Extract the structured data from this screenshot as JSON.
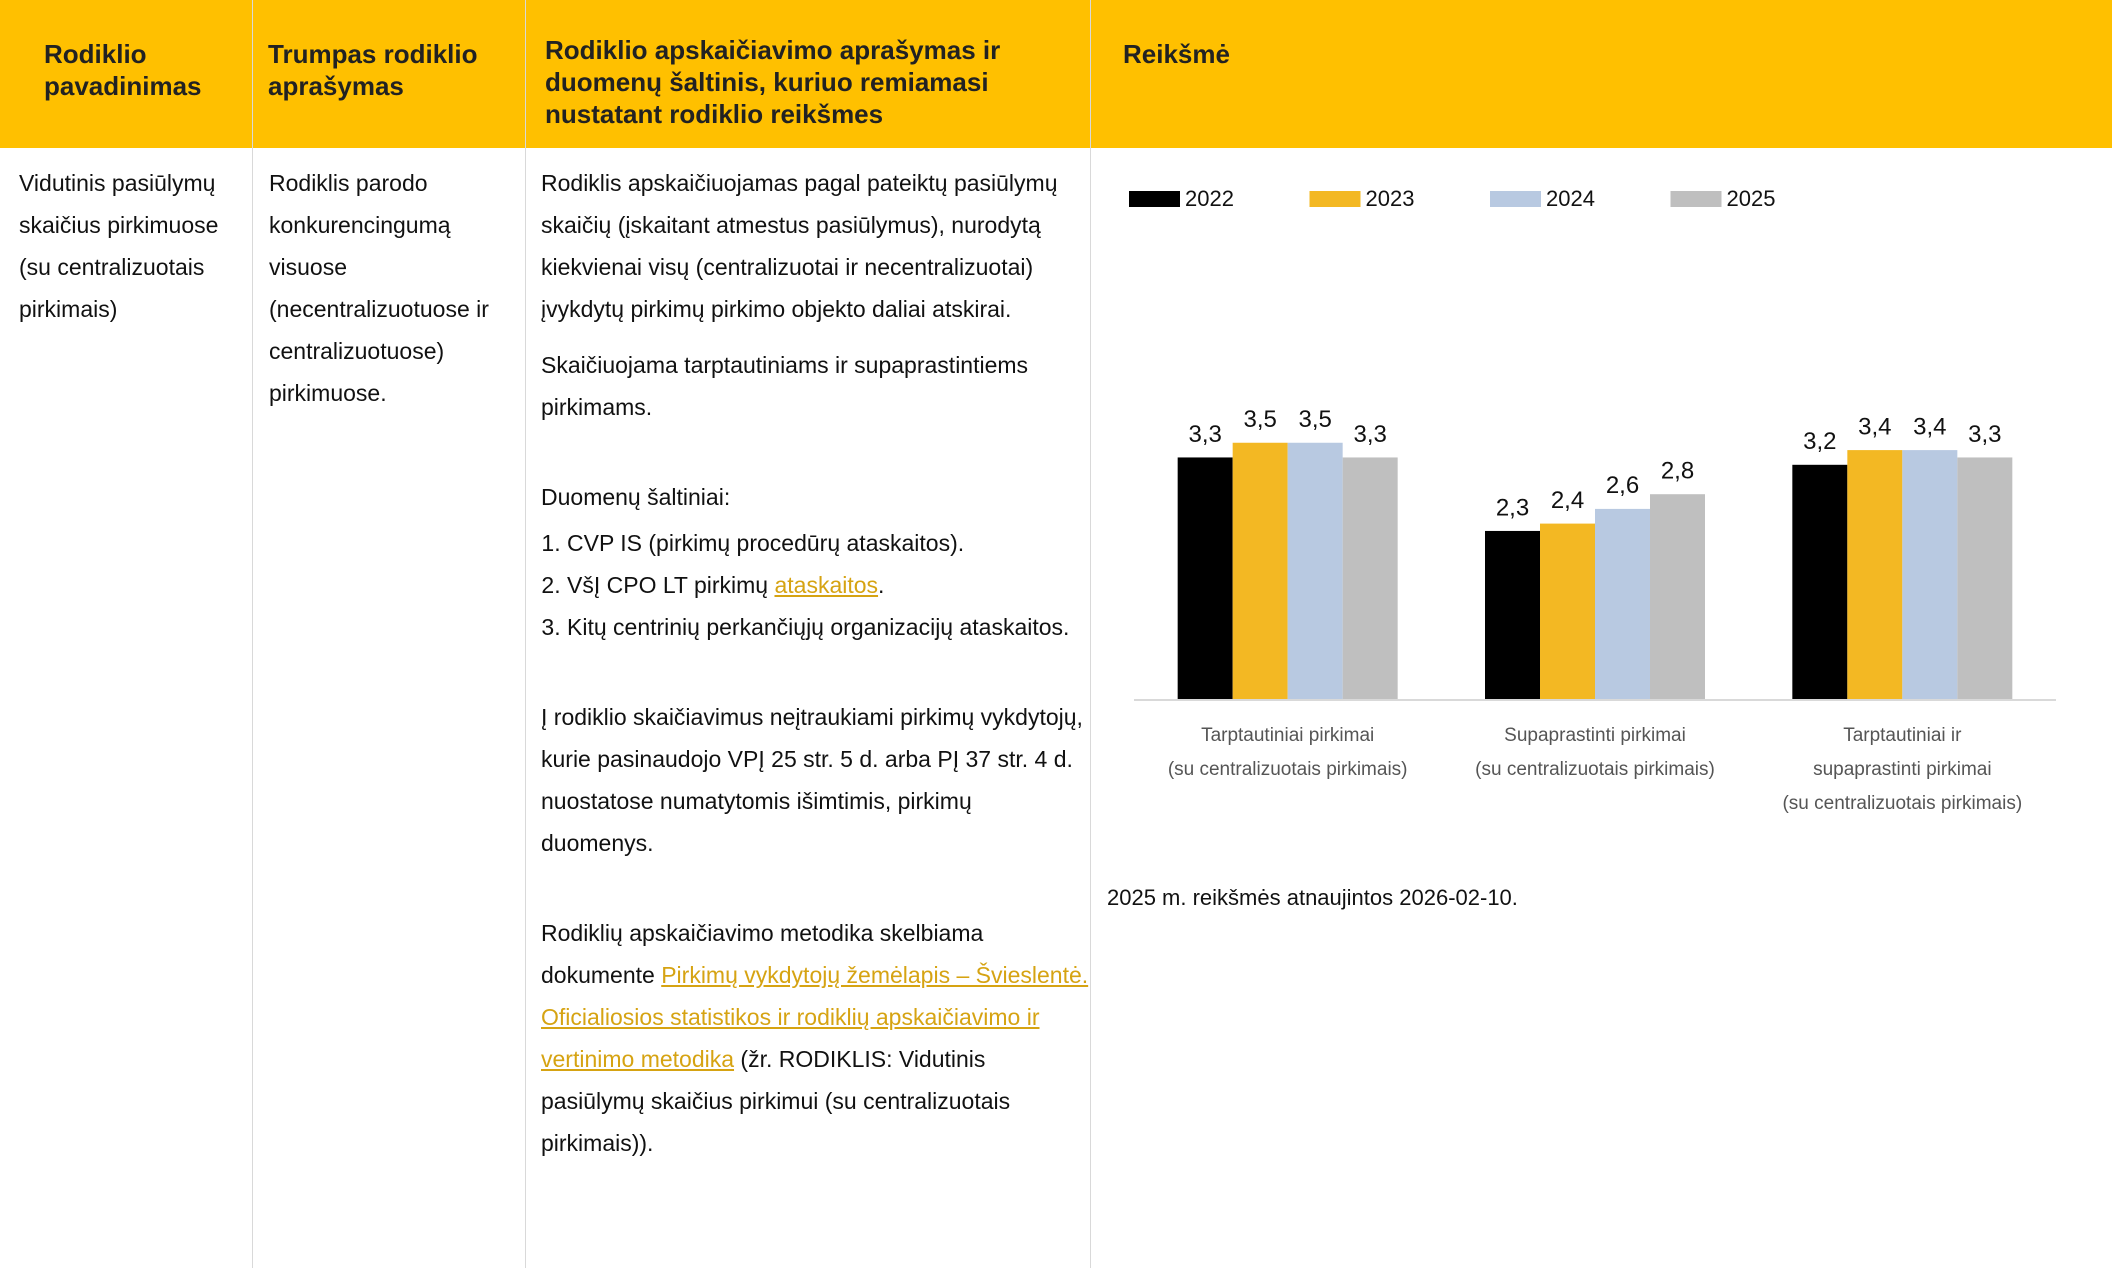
{
  "table": {
    "headers": [
      "Rodiklio pavadinimas",
      "Trumpas rodiklio aprašymas",
      "Rodiklio apskaičiavimo aprašymas ir duomenų šaltinis, kuriuo remiamasi nustatant rodiklio reikšmes",
      "Reikšmė"
    ],
    "rows": [
      {
        "name": "Vidutinis pasiūlymų skaičius pirkimuose (su centralizuotais pirkimais)",
        "short": "Rodiklis parodo konkurencingumą visuose (necentralizuotuose ir centralizuotuose) pirkimuose.",
        "method": {
          "intro": [
            "Rodiklis apskaičiuojamas pagal pateiktų pasiūlymų skaičių (įskaitant atmestus pasiūlymus), nurodytą kiekvienai visų (centralizuotai ir necentralizuotai) įvykdytų pirkimų pirkimo objekto daliai atskirai.",
            "Skaičiuojama tarptautiniams ir supaprastintiems pirkimams."
          ],
          "sources_title": "Duomenų šaltiniai:",
          "sources": [
            [
              "CVP IS (pirkimų procedūrų ataskaitos)."
            ],
            [
              "VšĮ CPO LT pirkimų ",
              "ataskaitos",
              "."
            ],
            [
              "Kitų centrinių perkančiųjų organizacijų ataskaitos."
            ]
          ],
          "exclusion": "Į rodiklio skaičiavimus neįtraukiami pirkimų vykdytojų, kurie pasinaudojo VPĮ 25 str. 5 d. arba PĮ 37 str. 4 d. nuostatose numatytomis išimtimis, pirkimų duomenys.",
          "methodology": [
            "Rodiklių apskaičiavimo metodika skelbiama dokumente ",
            "Pirkimų vykdytojų žemėlapis – Švieslentė. Oficialiosios statistikos ir rodiklių apskaičiavimo ir vertinimo metodika",
            " (žr. RODIKLIS: Vidutinis pasiūlymų skaičius pirkimui (su centralizuotais pirkimais))."
          ]
        }
      }
    ]
  },
  "chart_data": {
    "type": "bar",
    "categories": [
      "Tarptautiniai pirkimai\n(su centralizuotais pirkimais)",
      "Supaprastinti pirkimai\n(su centralizuotais pirkimais)",
      "Tarptautiniai ir\nsupaprastinti pirkimai\n(su centralizuotais pirkimais)"
    ],
    "series": [
      {
        "name": "2022",
        "color": "#000000",
        "values": [
          3.3,
          2.3,
          3.2
        ],
        "value_labels": [
          "3,3",
          "2,3",
          "3,2"
        ]
      },
      {
        "name": "2023",
        "color": "#f3b823",
        "values": [
          3.5,
          2.4,
          3.4
        ],
        "value_labels": [
          "3,5",
          "2,4",
          "3,4"
        ]
      },
      {
        "name": "2024",
        "color": "#b8c9e1",
        "values": [
          3.5,
          2.6,
          3.4
        ],
        "value_labels": [
          "3,5",
          "2,6",
          "3,4"
        ]
      },
      {
        "name": "2025",
        "color": "#bfbfbf",
        "values": [
          3.3,
          2.8,
          3.3
        ],
        "value_labels": [
          "3,3",
          "2,8",
          "3,3"
        ]
      }
    ],
    "ylim": [
      0,
      4
    ],
    "legend": "top"
  },
  "note": "2025 m. reikšmės atnaujintos 2026-02-10."
}
